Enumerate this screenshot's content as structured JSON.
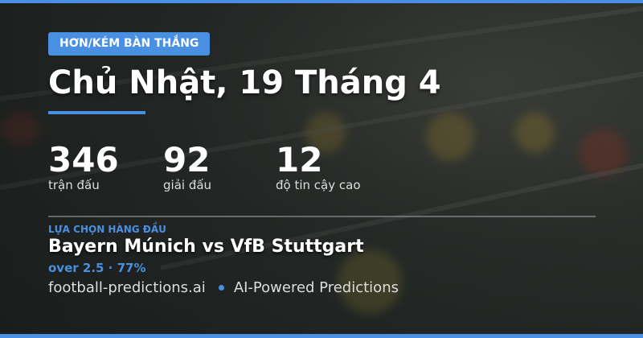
{
  "badge": "HƠN/KÉM BÀN THẮNG",
  "title": "Chủ Nhật, 19 Tháng 4",
  "stats": [
    {
      "value": "346",
      "label": "trận đấu"
    },
    {
      "value": "92",
      "label": "giải đấu"
    },
    {
      "value": "12",
      "label": "độ tin cậy cao"
    }
  ],
  "top_pick": {
    "kicker": "LỰA CHỌN HÀNG ĐẦU",
    "match": "Bayern Múnich vs VfB Stuttgart",
    "pick": "over 2.5 · 77%"
  },
  "footer": {
    "site": "football-predictions.ai",
    "tagline": "AI-Powered Predictions"
  },
  "colors": {
    "accent": "#4a90e2"
  }
}
